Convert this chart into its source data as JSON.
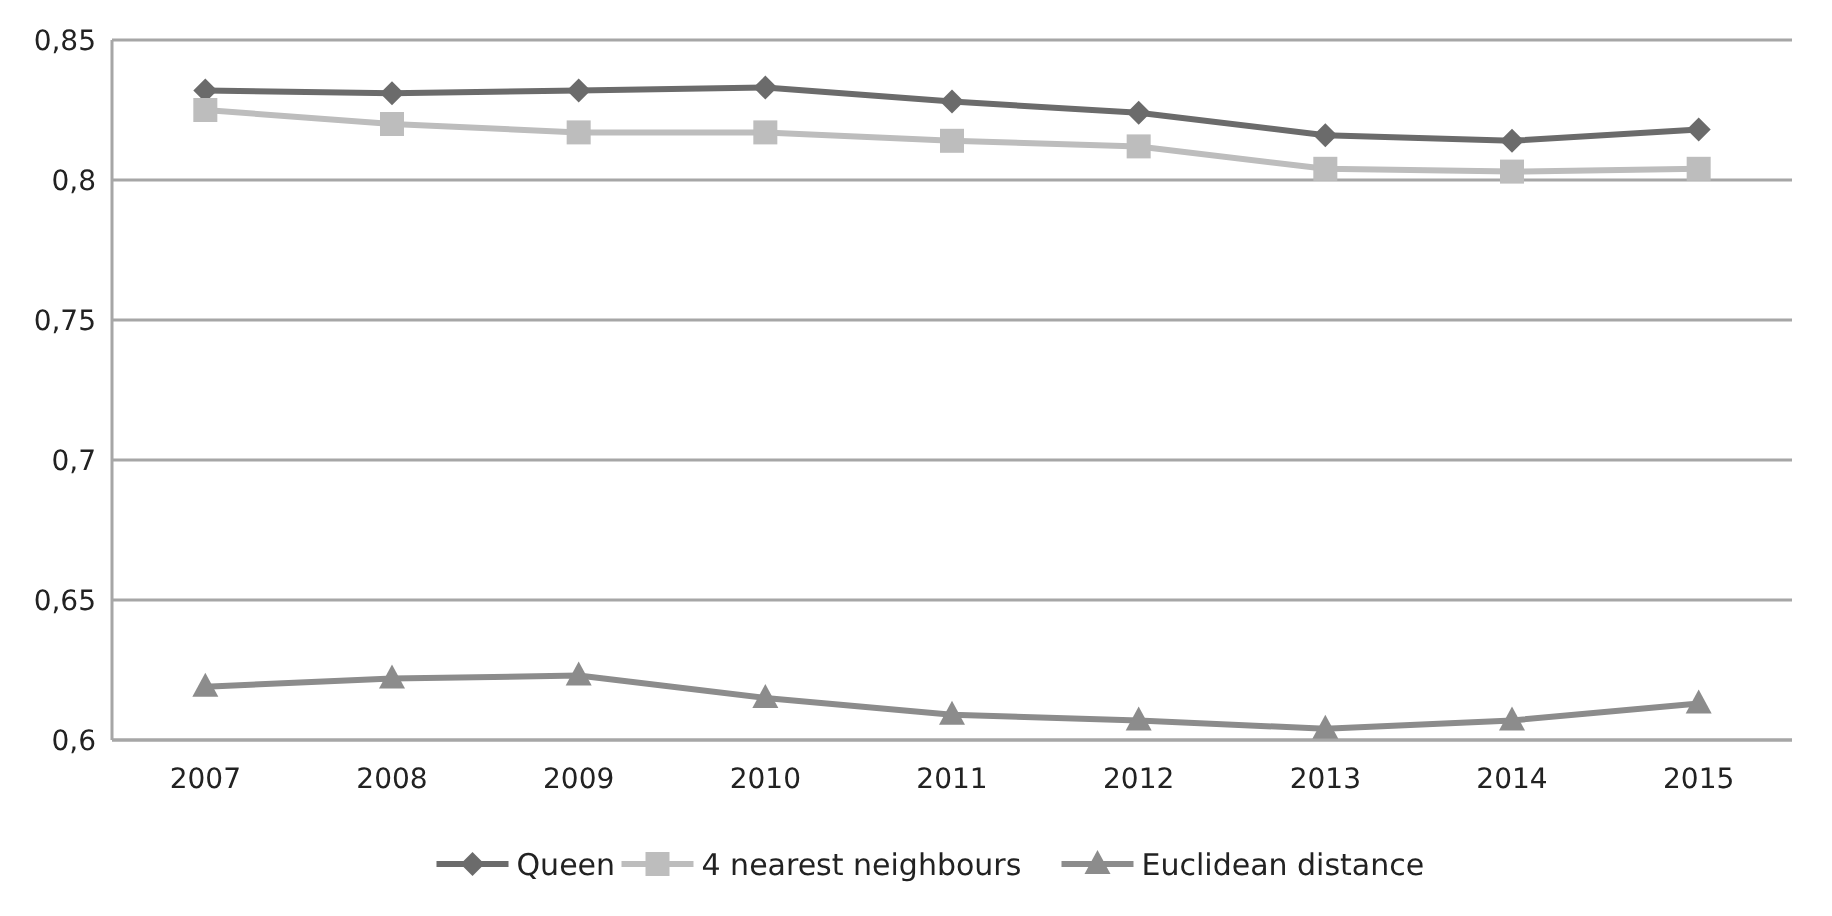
{
  "chart_data": {
    "type": "line",
    "categories": [
      "2007",
      "2008",
      "2009",
      "2010",
      "2011",
      "2012",
      "2013",
      "2014",
      "2015"
    ],
    "series": [
      {
        "name": "Queen",
        "color": "#6b6b6b",
        "marker": "diamond",
        "values": [
          0.832,
          0.831,
          0.832,
          0.833,
          0.828,
          0.824,
          0.816,
          0.814,
          0.818
        ]
      },
      {
        "name": "4 nearest neighbours",
        "color": "#bdbdbd",
        "marker": "square",
        "values": [
          0.825,
          0.82,
          0.817,
          0.817,
          0.814,
          0.812,
          0.804,
          0.803,
          0.804
        ]
      },
      {
        "name": "Euclidean distance",
        "color": "#8c8c8c",
        "marker": "triangle",
        "values": [
          0.619,
          0.622,
          0.623,
          0.615,
          0.609,
          0.607,
          0.604,
          0.607,
          0.613
        ]
      }
    ],
    "ylim": [
      0.6,
      0.85
    ],
    "yticks": [
      {
        "value": 0.6,
        "label": "0,6"
      },
      {
        "value": 0.65,
        "label": "0,65"
      },
      {
        "value": 0.7,
        "label": "0,7"
      },
      {
        "value": 0.75,
        "label": "0,75"
      },
      {
        "value": 0.8,
        "label": "0,8"
      },
      {
        "value": 0.85,
        "label": "0,85"
      }
    ],
    "grid": "y",
    "legend": "bottom"
  }
}
